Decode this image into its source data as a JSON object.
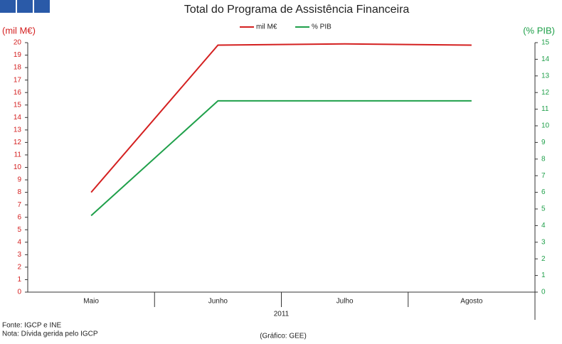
{
  "chart_data": {
    "type": "line",
    "title": "Total do Programa de Assistência Financeira",
    "y_label": "(mil M€)",
    "y2_label": "(% PIB)",
    "categories": [
      "Maio",
      "Junho",
      "Julho",
      "Agosto"
    ],
    "category_group": "2011",
    "series": [
      {
        "name": "mil M€",
        "color": "#d42020",
        "values": [
          8.0,
          19.8,
          19.9,
          19.8
        ]
      },
      {
        "name": "% PIB",
        "color": "#1fa04a",
        "axis": "y2",
        "values": [
          4.6,
          11.5,
          11.5,
          11.5
        ]
      }
    ],
    "ylim": [
      0,
      20
    ],
    "yticks": [
      0,
      1,
      2,
      3,
      4,
      5,
      6,
      7,
      8,
      9,
      10,
      11,
      12,
      13,
      14,
      15,
      16,
      17,
      18,
      19,
      20
    ],
    "y2lim": [
      0,
      15
    ],
    "y2ticks": [
      0,
      1,
      2,
      3,
      4,
      5,
      6,
      7,
      8,
      9,
      10,
      11,
      12,
      13,
      14,
      15
    ],
    "legend": "top",
    "source": "Fonte: IGCP e INE",
    "note": "Nota: Dívida gerida pelo IGCP",
    "credit": "(Gráfico: GEE)"
  }
}
